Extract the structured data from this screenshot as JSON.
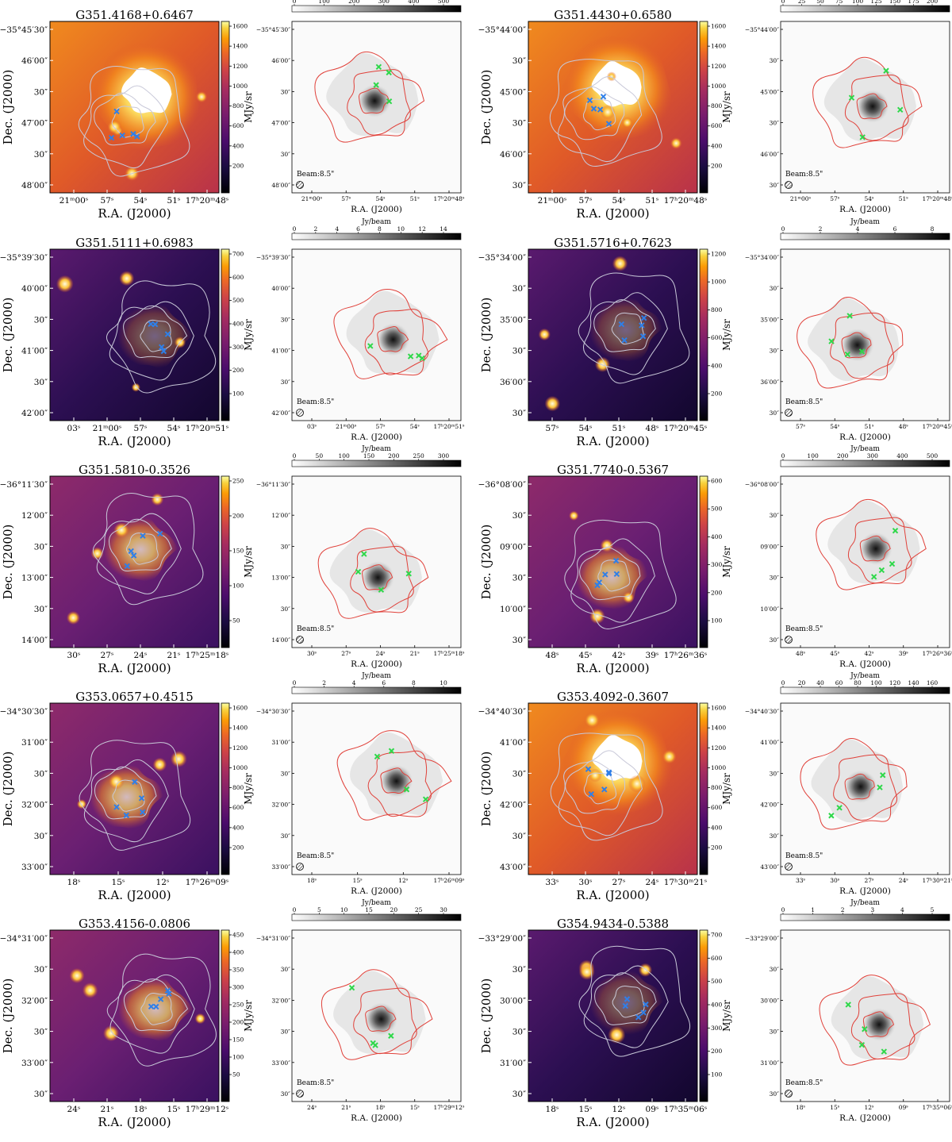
{
  "figure": {
    "xlabel": "R.A. (J2000)",
    "ylabel": "Dec. (J2000)",
    "beam_label": "Beam:8.5\"",
    "ir_unit": "MJy/sr",
    "mm_unit": "Jy/beam",
    "colors": {
      "contour_ir": "#c8c8d8",
      "contour_mm": "#e0413a",
      "marker_ir": "#2f7fe8",
      "marker_mm": "#2fd84a"
    }
  },
  "panels": [
    {
      "name": "G351.4168+0.6467",
      "ir_scene": "bright",
      "ir_cbar_ticks": [
        "1600",
        "1400",
        "1200",
        "1000",
        "800",
        "600",
        "400",
        "200"
      ],
      "mm_cbar_ticks": [
        "0",
        "100",
        "200",
        "300",
        "400",
        "500"
      ],
      "dec_ticks": [
        "−35°45′30″",
        "46′00″",
        "30″",
        "47′00″",
        "30″",
        "48′00″"
      ],
      "mm_dec_ticks": [
        "−35°45′30″",
        "46′00″",
        "30″",
        "47′00″",
        "30″",
        "48′00″"
      ],
      "ra_ticks": [
        "21ᵐ00ˢ",
        "57ˢ",
        "54ˢ",
        "51ˢ",
        "17ʰ20ᵐ48ˢ"
      ]
    },
    {
      "name": "G351.4430+0.6580",
      "ir_scene": "bright",
      "ir_cbar_ticks": [
        "1600",
        "1400",
        "1200",
        "1000",
        "800",
        "600",
        "400",
        "200"
      ],
      "mm_cbar_ticks": [
        "0",
        "25",
        "50",
        "75",
        "100",
        "125",
        "150",
        "175",
        "200"
      ],
      "dec_ticks": [
        "−35°44′00″",
        "30″",
        "45′00″",
        "30″",
        "46′00″",
        "30″"
      ],
      "mm_dec_ticks": [
        "−35°44′00″",
        "30″",
        "45′00″",
        "30″",
        "46′00″",
        "30″"
      ],
      "ra_ticks": [
        "21ᵐ00ˢ",
        "57ˢ",
        "54ˢ",
        "51ˢ",
        "17ʰ20ᵐ48ˢ"
      ]
    },
    {
      "name": "G351.5111+0.6983",
      "ir_scene": "dark",
      "ir_cbar_ticks": [
        "700",
        "600",
        "500",
        "400",
        "300",
        "200",
        "100"
      ],
      "mm_cbar_ticks": [
        "0",
        "2",
        "4",
        "6",
        "8",
        "10",
        "12",
        "14"
      ],
      "dec_ticks": [
        "−35°39′30″",
        "40′00″",
        "30″",
        "41′00″",
        "30″",
        "42′00″"
      ],
      "mm_dec_ticks": [
        "−35°39′30″",
        "40′00″",
        "30″",
        "41′00″",
        "30″",
        "42′00″"
      ],
      "ra_ticks": [
        "03ˢ",
        "21ᵐ00ˢ",
        "57ˢ",
        "54ˢ",
        "17ʰ20ᵐ51ˢ"
      ]
    },
    {
      "name": "G351.5716+0.7623",
      "ir_scene": "dark",
      "ir_cbar_ticks": [
        "1200",
        "1000",
        "800",
        "600",
        "400",
        "200"
      ],
      "mm_cbar_ticks": [
        "0",
        "2",
        "4",
        "6",
        "8"
      ],
      "dec_ticks": [
        "−35°34′00″",
        "30″",
        "35′00″",
        "30″",
        "36′00″",
        "30″"
      ],
      "mm_dec_ticks": [
        "−35°34′00″",
        "30″",
        "35′00″",
        "30″",
        "36′00″",
        "30″"
      ],
      "ra_ticks": [
        "57ˢ",
        "54ˢ",
        "51ˢ",
        "48ˢ",
        "17ʰ20ᵐ45ˢ"
      ]
    },
    {
      "name": "G351.5810-0.3526",
      "ir_scene": "medium",
      "ir_cbar_ticks": [
        "250",
        "200",
        "150",
        "100",
        "50"
      ],
      "mm_cbar_ticks": [
        "0",
        "50",
        "100",
        "150",
        "200",
        "250",
        "300"
      ],
      "dec_ticks": [
        "−36°11′30″",
        "12′00″",
        "30″",
        "13′00″",
        "30″",
        "14′00″"
      ],
      "mm_dec_ticks": [
        "−36°11′30″",
        "12′00″",
        "30″",
        "13′00″",
        "30″",
        "14′00″"
      ],
      "ra_ticks": [
        "30ˢ",
        "27ˢ",
        "24ˢ",
        "21ˢ",
        "17ʰ25ᵐ18ˢ"
      ]
    },
    {
      "name": "G351.7740-0.5367",
      "ir_scene": "medium",
      "ir_cbar_ticks": [
        "600",
        "500",
        "400",
        "300",
        "200",
        "100"
      ],
      "mm_cbar_ticks": [
        "0",
        "100",
        "200",
        "300",
        "400",
        "500"
      ],
      "dec_ticks": [
        "−36°08′00″",
        "30″",
        "09′00″",
        "30″",
        "10′00″",
        "30″"
      ],
      "mm_dec_ticks": [
        "−36°08′00″",
        "30″",
        "09′00″",
        "30″",
        "10′00″",
        "30″"
      ],
      "ra_ticks": [
        "48ˢ",
        "45ˢ",
        "42ˢ",
        "39ˢ",
        "17ʰ26ᵐ36ˢ"
      ]
    },
    {
      "name": "G353.0657+0.4515",
      "ir_scene": "medium",
      "ir_cbar_ticks": [
        "1600",
        "1400",
        "1200",
        "1000",
        "800",
        "600",
        "400",
        "200"
      ],
      "mm_cbar_ticks": [
        "0",
        "2",
        "4",
        "6",
        "8",
        "10"
      ],
      "dec_ticks": [
        "−34°30′30″",
        "31′00″",
        "30″",
        "32′00″",
        "30″",
        "33′00″"
      ],
      "mm_dec_ticks": [
        "−34°30′30″",
        "31′00″",
        "30″",
        "32′00″",
        "30″",
        "33′00″"
      ],
      "ra_ticks": [
        "18ˢ",
        "15ˢ",
        "12ˢ",
        "17ʰ26ᵐ09ˢ"
      ]
    },
    {
      "name": "G353.4092-0.3607",
      "ir_scene": "bright",
      "ir_cbar_ticks": [
        "1600",
        "1400",
        "1200",
        "1000",
        "800",
        "600",
        "400",
        "200"
      ],
      "mm_cbar_ticks": [
        "0",
        "20",
        "40",
        "60",
        "80",
        "100",
        "120",
        "140",
        "160"
      ],
      "dec_ticks": [
        "−34°40′30″",
        "41′00″",
        "30″",
        "42′00″",
        "30″",
        "43′00″"
      ],
      "mm_dec_ticks": [
        "−34°40′30″",
        "41′00″",
        "30″",
        "42′00″",
        "30″",
        "43′00″"
      ],
      "ra_ticks": [
        "33ˢ",
        "30ˢ",
        "27ˢ",
        "24ˢ",
        "17ʰ30ᵐ21ˢ"
      ]
    },
    {
      "name": "G353.4156-0.0806",
      "ir_scene": "medium",
      "ir_cbar_ticks": [
        "450",
        "400",
        "350",
        "300",
        "250",
        "200",
        "150",
        "100",
        "50"
      ],
      "mm_cbar_ticks": [
        "0",
        "5",
        "10",
        "15",
        "20",
        "25",
        "30"
      ],
      "dec_ticks": [
        "−34°31′00″",
        "30″",
        "32′00″",
        "30″",
        "33′00″",
        "30″"
      ],
      "mm_dec_ticks": [
        "−34°31′00″",
        "30″",
        "32′00″",
        "30″",
        "33′00″",
        "30″"
      ],
      "ra_ticks": [
        "24ˢ",
        "21ˢ",
        "18ˢ",
        "15ˢ",
        "17ʰ29ᵐ12ˢ"
      ]
    },
    {
      "name": "G354.9434-0.5388",
      "ir_scene": "dark",
      "ir_cbar_ticks": [
        "700",
        "600",
        "500",
        "400",
        "300",
        "200",
        "100"
      ],
      "mm_cbar_ticks": [
        "0",
        "1",
        "2",
        "3",
        "4",
        "5"
      ],
      "dec_ticks": [
        "−33°29′00″",
        "30″",
        "30′00″",
        "30″",
        "31′00″",
        "30″"
      ],
      "mm_dec_ticks": [
        "−33°29′00″",
        "30″",
        "30′00″",
        "30″",
        "31′00″",
        "30″"
      ],
      "ra_ticks": [
        "18ˢ",
        "15ˢ",
        "12ˢ",
        "09ˢ",
        "17ʰ35ᵐ06ˢ"
      ]
    }
  ]
}
